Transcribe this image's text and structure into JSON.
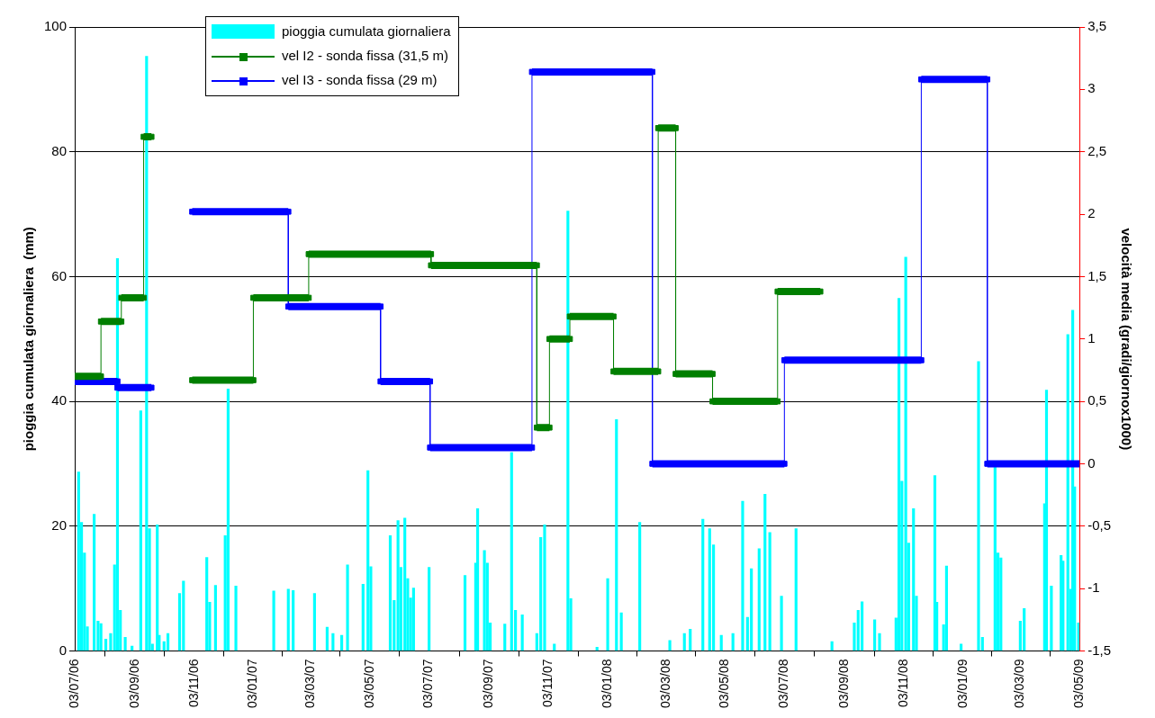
{
  "chart_data": {
    "type": "bar",
    "ylabel": "pioggia cumulata giornaliera  (mm)",
    "y2label": "velocità media (gradi/giornox1000)",
    "xlim": [
      "2006-07-03",
      "2009-05-03"
    ],
    "xticks": [
      {
        "value": "2006-07-03",
        "label": "03/07/06"
      },
      {
        "value": "2006-09-03",
        "label": "03/09/06"
      },
      {
        "value": "2006-11-03",
        "label": "03/11/06"
      },
      {
        "value": "2007-01-03",
        "label": "03/01/07"
      },
      {
        "value": "2007-03-03",
        "label": "03/03/07"
      },
      {
        "value": "2007-05-03",
        "label": "03/05/07"
      },
      {
        "value": "2007-07-03",
        "label": "03/07/07"
      },
      {
        "value": "2007-09-03",
        "label": "03/09/07"
      },
      {
        "value": "2007-11-03",
        "label": "03/11/07"
      },
      {
        "value": "2008-01-03",
        "label": "03/01/08"
      },
      {
        "value": "2008-03-03",
        "label": "03/03/08"
      },
      {
        "value": "2008-05-03",
        "label": "03/05/08"
      },
      {
        "value": "2008-07-03",
        "label": "03/07/08"
      },
      {
        "value": "2008-09-03",
        "label": "03/09/08"
      },
      {
        "value": "2008-11-03",
        "label": "03/11/08"
      },
      {
        "value": "2009-01-03",
        "label": "03/01/09"
      },
      {
        "value": "2009-03-03",
        "label": "03/03/09"
      },
      {
        "value": "2009-05-03",
        "label": "03/05/09"
      }
    ],
    "ylim": [
      0,
      100
    ],
    "yticks": [
      0,
      20,
      40,
      60,
      80,
      100
    ],
    "y2lim": [
      -1.5,
      3.5
    ],
    "y2ticks": [
      {
        "value": -1.5,
        "label": "-1,5"
      },
      -1,
      {
        "value": -0.5,
        "label": "-0,5"
      },
      0,
      {
        "value": 0.5,
        "label": "0,5"
      },
      1,
      {
        "value": 1.5,
        "label": "1,5"
      },
      2,
      {
        "value": 2.5,
        "label": "2,5"
      },
      3,
      {
        "value": 3.5,
        "label": "3,5"
      }
    ],
    "grid": "y",
    "legend": "top left",
    "marker": "square",
    "line_style": "solid",
    "series": [
      {
        "name": "pioggia cumulata giornaliera",
        "color": "#00ffff",
        "x": [
          "2006-07-07",
          "2006-07-10",
          "2006-07-13",
          "2006-07-16",
          "2006-07-23",
          "2006-07-27",
          "2006-07-30",
          "2006-08-04",
          "2006-08-09",
          "2006-08-13",
          "2006-08-16",
          "2006-08-19",
          "2006-08-24",
          "2006-08-31",
          "2006-09-09",
          "2006-09-15",
          "2006-09-18",
          "2006-09-21",
          "2006-09-26",
          "2006-09-28",
          "2006-10-03",
          "2006-10-07",
          "2006-10-19",
          "2006-10-23",
          "2006-11-16",
          "2006-11-19",
          "2006-11-25",
          "2006-12-05",
          "2006-12-08",
          "2006-12-16",
          "2007-01-24",
          "2007-02-08",
          "2007-02-13",
          "2007-03-07",
          "2007-03-20",
          "2007-03-26",
          "2007-04-04",
          "2007-04-10",
          "2007-04-26",
          "2007-05-01",
          "2007-05-04",
          "2007-05-24",
          "2007-05-28",
          "2007-06-01",
          "2007-06-04",
          "2007-06-08",
          "2007-06-11",
          "2007-06-14",
          "2007-06-17",
          "2007-07-03",
          "2007-08-09",
          "2007-08-20",
          "2007-08-22",
          "2007-08-29",
          "2007-09-01",
          "2007-09-04",
          "2007-09-19",
          "2007-09-26",
          "2007-09-30",
          "2007-10-07",
          "2007-10-22",
          "2007-10-26",
          "2007-10-30",
          "2007-11-09",
          "2007-11-23",
          "2007-11-26",
          "2007-12-23",
          "2008-01-03",
          "2008-01-12",
          "2008-01-17",
          "2008-02-05",
          "2008-03-07",
          "2008-03-22",
          "2008-03-28",
          "2008-04-10",
          "2008-04-17",
          "2008-04-21",
          "2008-04-29",
          "2008-05-11",
          "2008-05-21",
          "2008-05-26",
          "2008-05-30",
          "2008-06-07",
          "2008-06-13",
          "2008-06-18",
          "2008-06-30",
          "2008-07-15",
          "2008-08-21",
          "2008-09-13",
          "2008-09-17",
          "2008-09-21",
          "2008-10-04",
          "2008-10-09",
          "2008-10-26",
          "2008-10-29",
          "2008-11-01",
          "2008-11-05",
          "2008-11-08",
          "2008-11-13",
          "2008-11-16",
          "2008-12-05",
          "2008-12-07",
          "2008-12-14",
          "2008-12-17",
          "2009-01-01",
          "2009-01-19",
          "2009-01-23",
          "2009-02-05",
          "2009-02-08",
          "2009-02-11",
          "2009-03-03",
          "2009-03-07",
          "2009-03-28",
          "2009-03-30",
          "2009-04-04",
          "2009-04-14",
          "2009-04-16",
          "2009-04-21",
          "2009-04-24",
          "2009-04-26",
          "2009-04-28",
          "2009-05-02"
        ],
        "values": [
          28.7,
          20.6,
          15.7,
          3.9,
          21.9,
          4.8,
          4.4,
          1.9,
          2.8,
          13.8,
          62.9,
          6.5,
          2.2,
          0.8,
          38.5,
          95.3,
          19.6,
          1.1,
          20.2,
          2.5,
          1.5,
          2.8,
          9.2,
          11.2,
          15.0,
          7.8,
          10.5,
          18.5,
          42.0,
          10.4,
          9.6,
          9.9,
          9.7,
          9.2,
          3.8,
          2.8,
          2.5,
          13.8,
          10.7,
          28.9,
          13.5,
          18.5,
          8.1,
          20.9,
          13.4,
          21.3,
          11.6,
          8.5,
          10.1,
          13.4,
          12.1,
          14.1,
          22.8,
          16.1,
          14.1,
          4.5,
          4.3,
          31.8,
          6.5,
          5.8,
          2.8,
          18.2,
          20.2,
          1.1,
          70.5,
          8.4,
          0.6,
          11.6,
          37.1,
          6.1,
          20.6,
          1.7,
          2.8,
          3.5,
          21.1,
          19.6,
          17.0,
          2.5,
          2.8,
          24.0,
          5.4,
          13.2,
          16.4,
          25.1,
          19.0,
          8.8,
          19.6,
          1.5,
          4.5,
          6.5,
          7.9,
          5.0,
          2.8,
          5.3,
          56.5,
          27.2,
          63.1,
          17.3,
          22.8,
          8.8,
          28.1,
          7.8,
          4.2,
          13.6,
          1.1,
          46.4,
          2.2,
          29.6,
          15.7,
          14.9,
          4.8,
          6.8,
          23.6,
          41.8,
          10.4,
          15.3,
          14.4,
          50.7,
          9.9,
          54.6,
          26.3,
          4.5
        ]
      },
      {
        "name": "vel I2 - sonda fissa (31,5 m)",
        "color": "#007f00",
        "type": "line",
        "axis": "y2",
        "x": [
          "2006-07-03",
          "2006-07-30",
          "2006-07-30",
          "2006-08-20",
          "2006-08-20",
          "2006-09-12",
          "2006-09-12",
          "2006-09-20",
          "2006-10-15",
          "2006-11-01",
          "2007-01-03",
          "2007-01-03",
          "2007-03-01",
          "2007-03-01",
          "2007-07-05",
          "2007-07-05",
          "2007-10-22",
          "2007-10-22",
          "2007-11-04",
          "2007-11-04",
          "2007-11-25",
          "2007-11-25",
          "2008-01-09",
          "2008-01-09",
          "2008-02-24",
          "2008-02-24",
          "2008-03-13",
          "2008-03-13",
          "2008-04-20",
          "2008-04-20",
          "2008-06-26",
          "2008-06-26",
          "2008-08-09"
        ],
        "values": [
          0.7,
          0.7,
          1.14,
          1.14,
          1.33,
          1.33,
          2.62,
          2.62,
          null,
          0.67,
          0.67,
          1.33,
          1.33,
          1.68,
          1.68,
          1.59,
          1.59,
          0.29,
          0.29,
          1.0,
          1.0,
          1.18,
          1.18,
          0.74,
          0.74,
          2.69,
          2.69,
          0.72,
          0.72,
          0.5,
          0.5,
          1.38,
          1.38
        ]
      },
      {
        "name": "vel I3 - sonda fissa (29 m)",
        "color": "#0000ff",
        "type": "line",
        "axis": "y2",
        "x": [
          "2006-07-03",
          "2006-08-16",
          "2006-08-16",
          "2006-09-20",
          "2006-10-15",
          "2006-11-01",
          "2007-02-08",
          "2007-02-08",
          "2007-05-14",
          "2007-05-14",
          "2007-07-04",
          "2007-07-04",
          "2007-10-17",
          "2007-10-17",
          "2008-02-18",
          "2008-02-18",
          "2008-07-03",
          "2008-07-03",
          "2008-11-21",
          "2008-11-21",
          "2009-01-28",
          "2009-01-28",
          "2009-05-03"
        ],
        "values": [
          0.66,
          0.66,
          0.61,
          0.61,
          null,
          2.02,
          2.02,
          1.26,
          1.26,
          0.66,
          0.66,
          0.13,
          0.13,
          3.14,
          3.14,
          0,
          0,
          0.83,
          0.83,
          3.08,
          3.08,
          0,
          0
        ]
      }
    ]
  }
}
